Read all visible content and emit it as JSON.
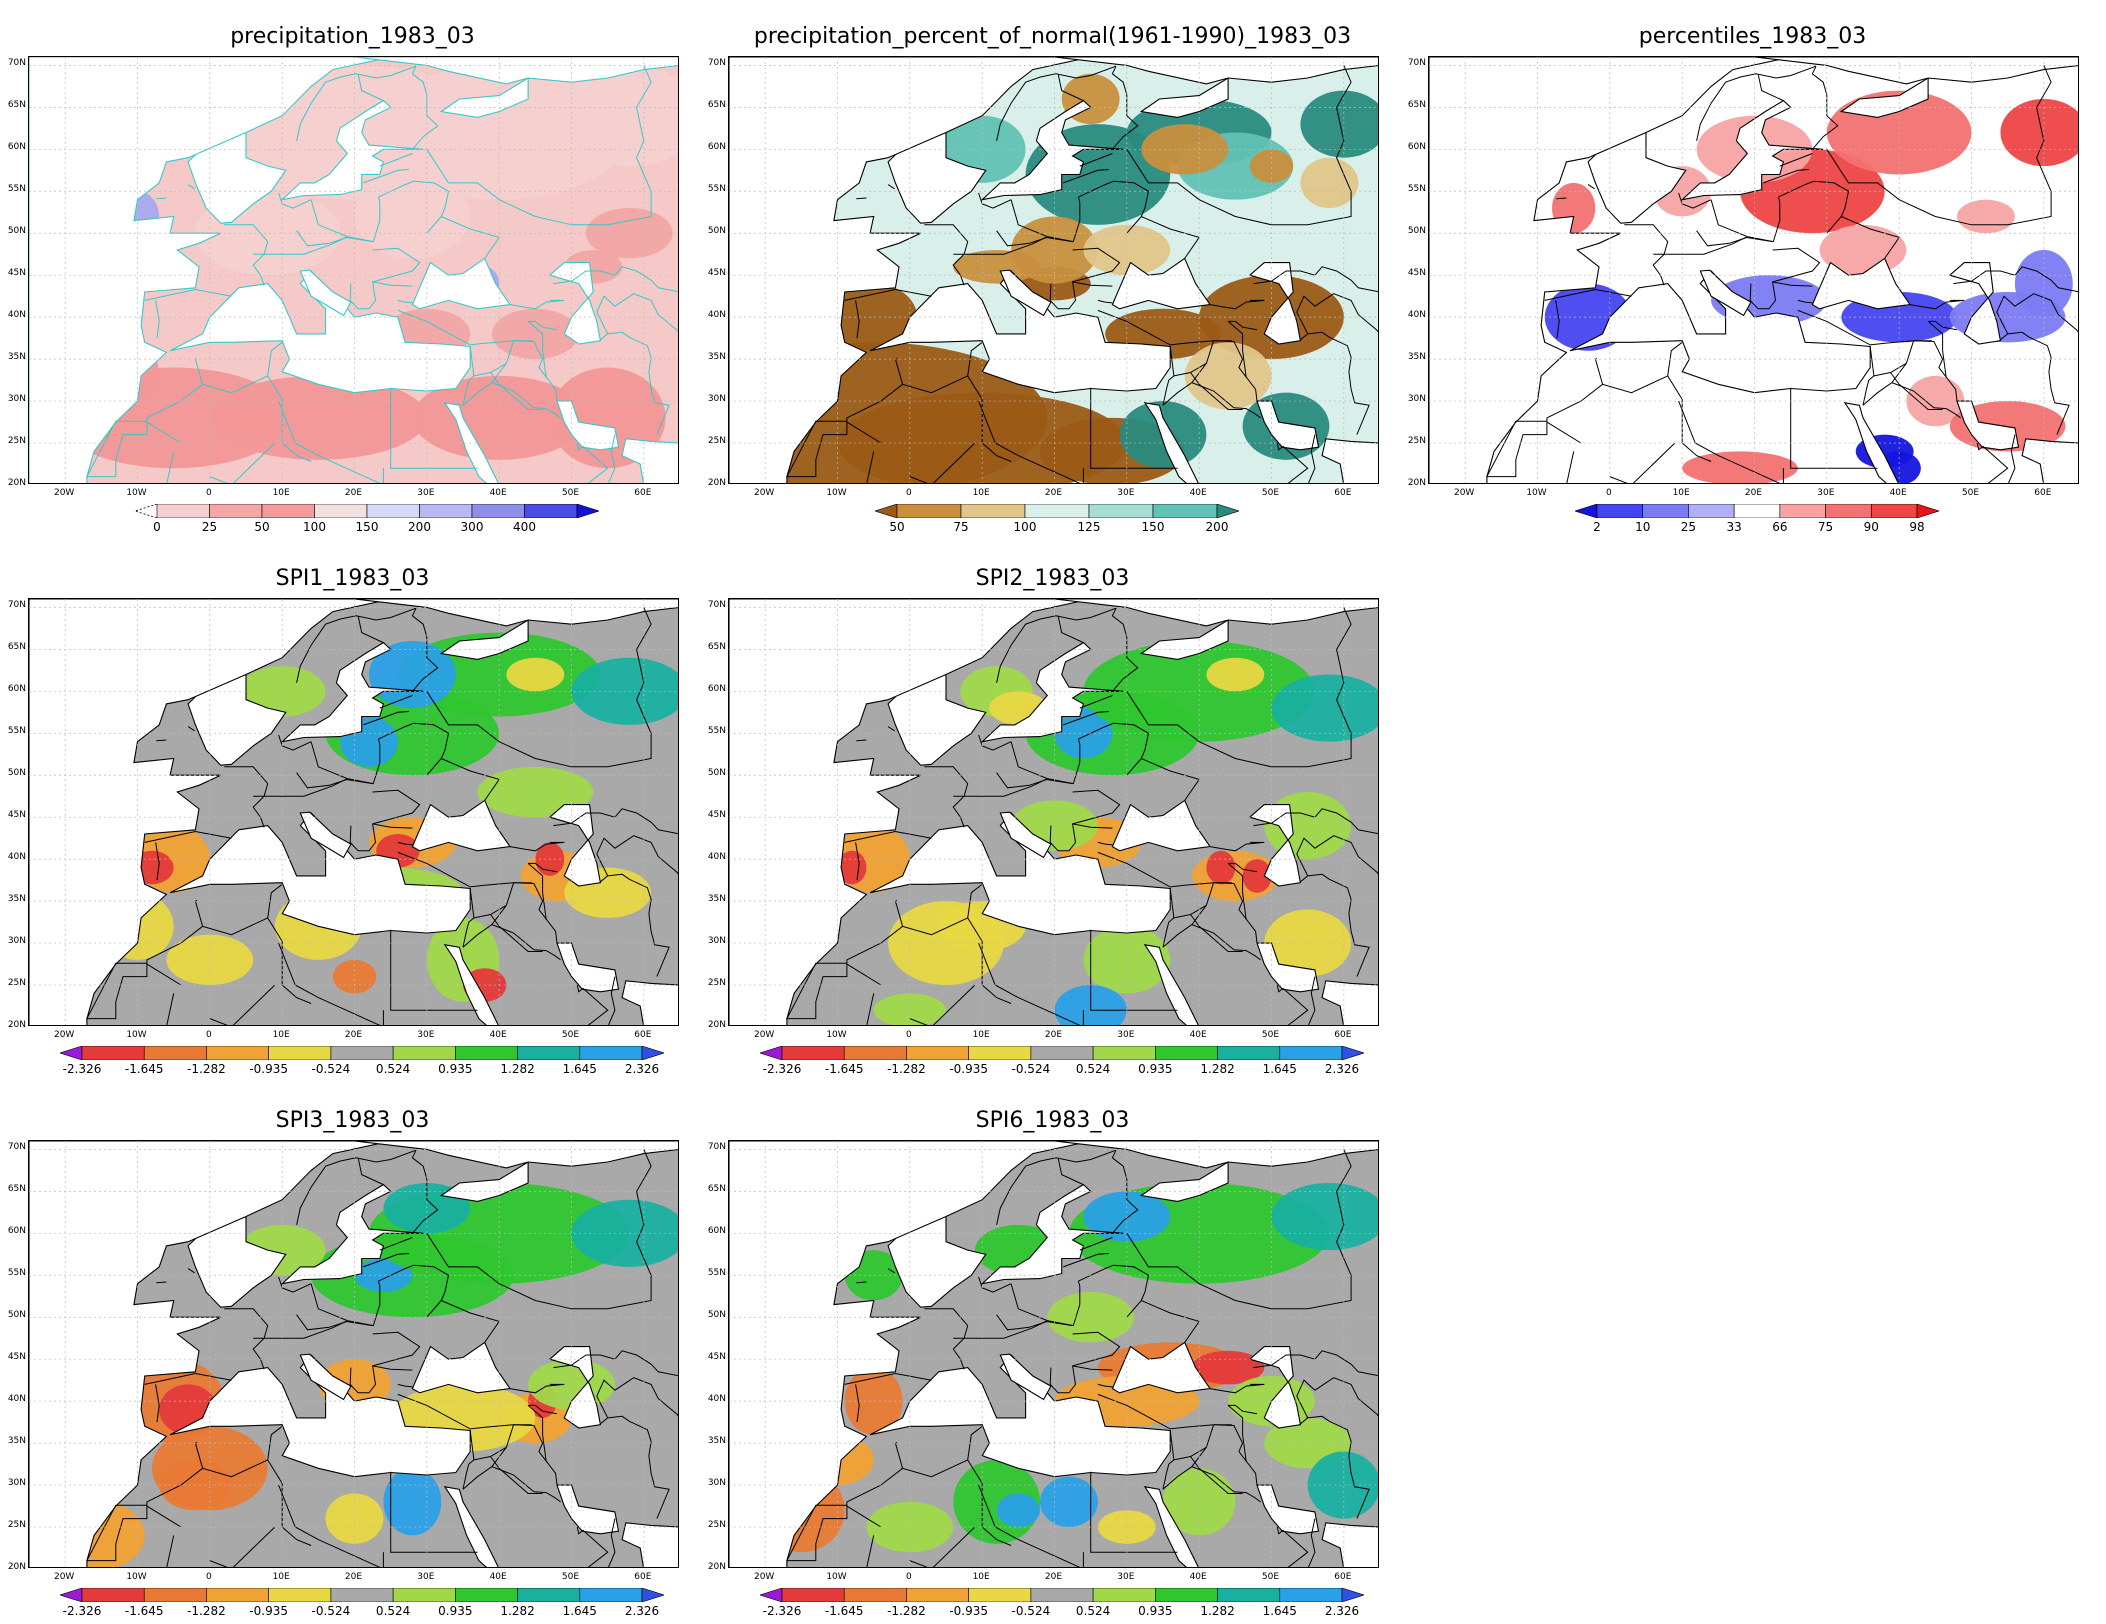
{
  "colors": {
    "land_gray": "#a9a9a9",
    "border": "#000000",
    "coast_precip": "#35c9c9"
  },
  "axes": {
    "lat_labels": [
      "70N",
      "65N",
      "60N",
      "55N",
      "50N",
      "45N",
      "40N",
      "35N",
      "30N",
      "25N",
      "20N"
    ],
    "lon_labels": [
      "20W",
      "10W",
      "0",
      "10E",
      "20E",
      "30E",
      "40E",
      "50E",
      "60E"
    ]
  },
  "panels": [
    {
      "id": "precip",
      "title": "precipitation_1983_03",
      "palette": "precip",
      "colorbar": {
        "colors": [
          "#f6d0d0",
          "#f4a7a7",
          "#f39c9c",
          "#f0e0e0",
          "#d7d7f7",
          "#b8b8f3",
          "#8f8fea",
          "#4b4be6",
          "#1212d8"
        ],
        "labels": [
          "0",
          "25",
          "50",
          "100",
          "150",
          "200",
          "300",
          "400"
        ],
        "left_arrow": false,
        "right_arrow": true
      }
    },
    {
      "id": "ppn",
      "title": "precipitation_percent_of_normal(1961-1990)_1983_03",
      "palette": "ppn",
      "colorbar": {
        "colors": [
          "#9b5a16",
          "#c88f3e",
          "#e2c58a",
          "#d8efea",
          "#a6ddd4",
          "#63c1b5",
          "#2a8a7e"
        ],
        "labels": [
          "50",
          "75",
          "100",
          "125",
          "150",
          "200"
        ],
        "left_arrow": true,
        "right_arrow": true
      }
    },
    {
      "id": "pct",
      "title": "percentiles_1983_03",
      "palette": "pct",
      "colorbar": {
        "colors": [
          "#1515e0",
          "#4646f0",
          "#7b7bf3",
          "#b0b0f5",
          "#ffffff",
          "#f7a3a3",
          "#f27272",
          "#ee4545",
          "#e81515"
        ],
        "labels": [
          "2",
          "10",
          "25",
          "33",
          "66",
          "75",
          "90",
          "98"
        ],
        "left_arrow": true,
        "right_arrow": true
      }
    },
    {
      "id": "spi1",
      "title": "SPI1_1983_03",
      "palette": "spi",
      "colorbar": {
        "colors": [
          "#9a1ad6",
          "#e53a3a",
          "#e87a35",
          "#f0a234",
          "#e8d843",
          "#a9a9a9",
          "#a0d84a",
          "#2fc62f",
          "#19b0a0",
          "#2aa0e6",
          "#3050e6"
        ],
        "labels": [
          "-2.326",
          "-1.645",
          "-1.282",
          "-0.935",
          "-0.524",
          "0.524",
          "0.935",
          "1.282",
          "1.645",
          "2.326"
        ],
        "left_arrow": true,
        "right_arrow": true
      }
    },
    {
      "id": "spi2",
      "title": "SPI2_1983_03",
      "palette": "spi",
      "colorbar": {
        "colors": [
          "#9a1ad6",
          "#e53a3a",
          "#e87a35",
          "#f0a234",
          "#e8d843",
          "#a9a9a9",
          "#a0d84a",
          "#2fc62f",
          "#19b0a0",
          "#2aa0e6",
          "#3050e6"
        ],
        "labels": [
          "-2.326",
          "-1.645",
          "-1.282",
          "-0.935",
          "-0.524",
          "0.524",
          "0.935",
          "1.282",
          "1.645",
          "2.326"
        ],
        "left_arrow": true,
        "right_arrow": true
      }
    },
    {
      "id": "spi3",
      "title": "SPI3_1983_03",
      "palette": "spi",
      "colorbar": {
        "colors": [
          "#9a1ad6",
          "#e53a3a",
          "#e87a35",
          "#f0a234",
          "#e8d843",
          "#a9a9a9",
          "#a0d84a",
          "#2fc62f",
          "#19b0a0",
          "#2aa0e6",
          "#3050e6"
        ],
        "labels": [
          "-2.326",
          "-1.645",
          "-1.282",
          "-0.935",
          "-0.524",
          "0.524",
          "0.935",
          "1.282",
          "1.645",
          "2.326"
        ],
        "left_arrow": true,
        "right_arrow": true
      }
    },
    {
      "id": "spi6",
      "title": "SPI6_1983_03",
      "palette": "spi",
      "colorbar": {
        "colors": [
          "#9a1ad6",
          "#e53a3a",
          "#e87a35",
          "#f0a234",
          "#e8d843",
          "#a9a9a9",
          "#a0d84a",
          "#2fc62f",
          "#19b0a0",
          "#2aa0e6",
          "#3050e6"
        ],
        "labels": [
          "-2.326",
          "-1.645",
          "-1.282",
          "-0.935",
          "-0.524",
          "0.524",
          "0.935",
          "1.282",
          "1.645",
          "2.326"
        ],
        "left_arrow": true,
        "right_arrow": true
      }
    }
  ]
}
